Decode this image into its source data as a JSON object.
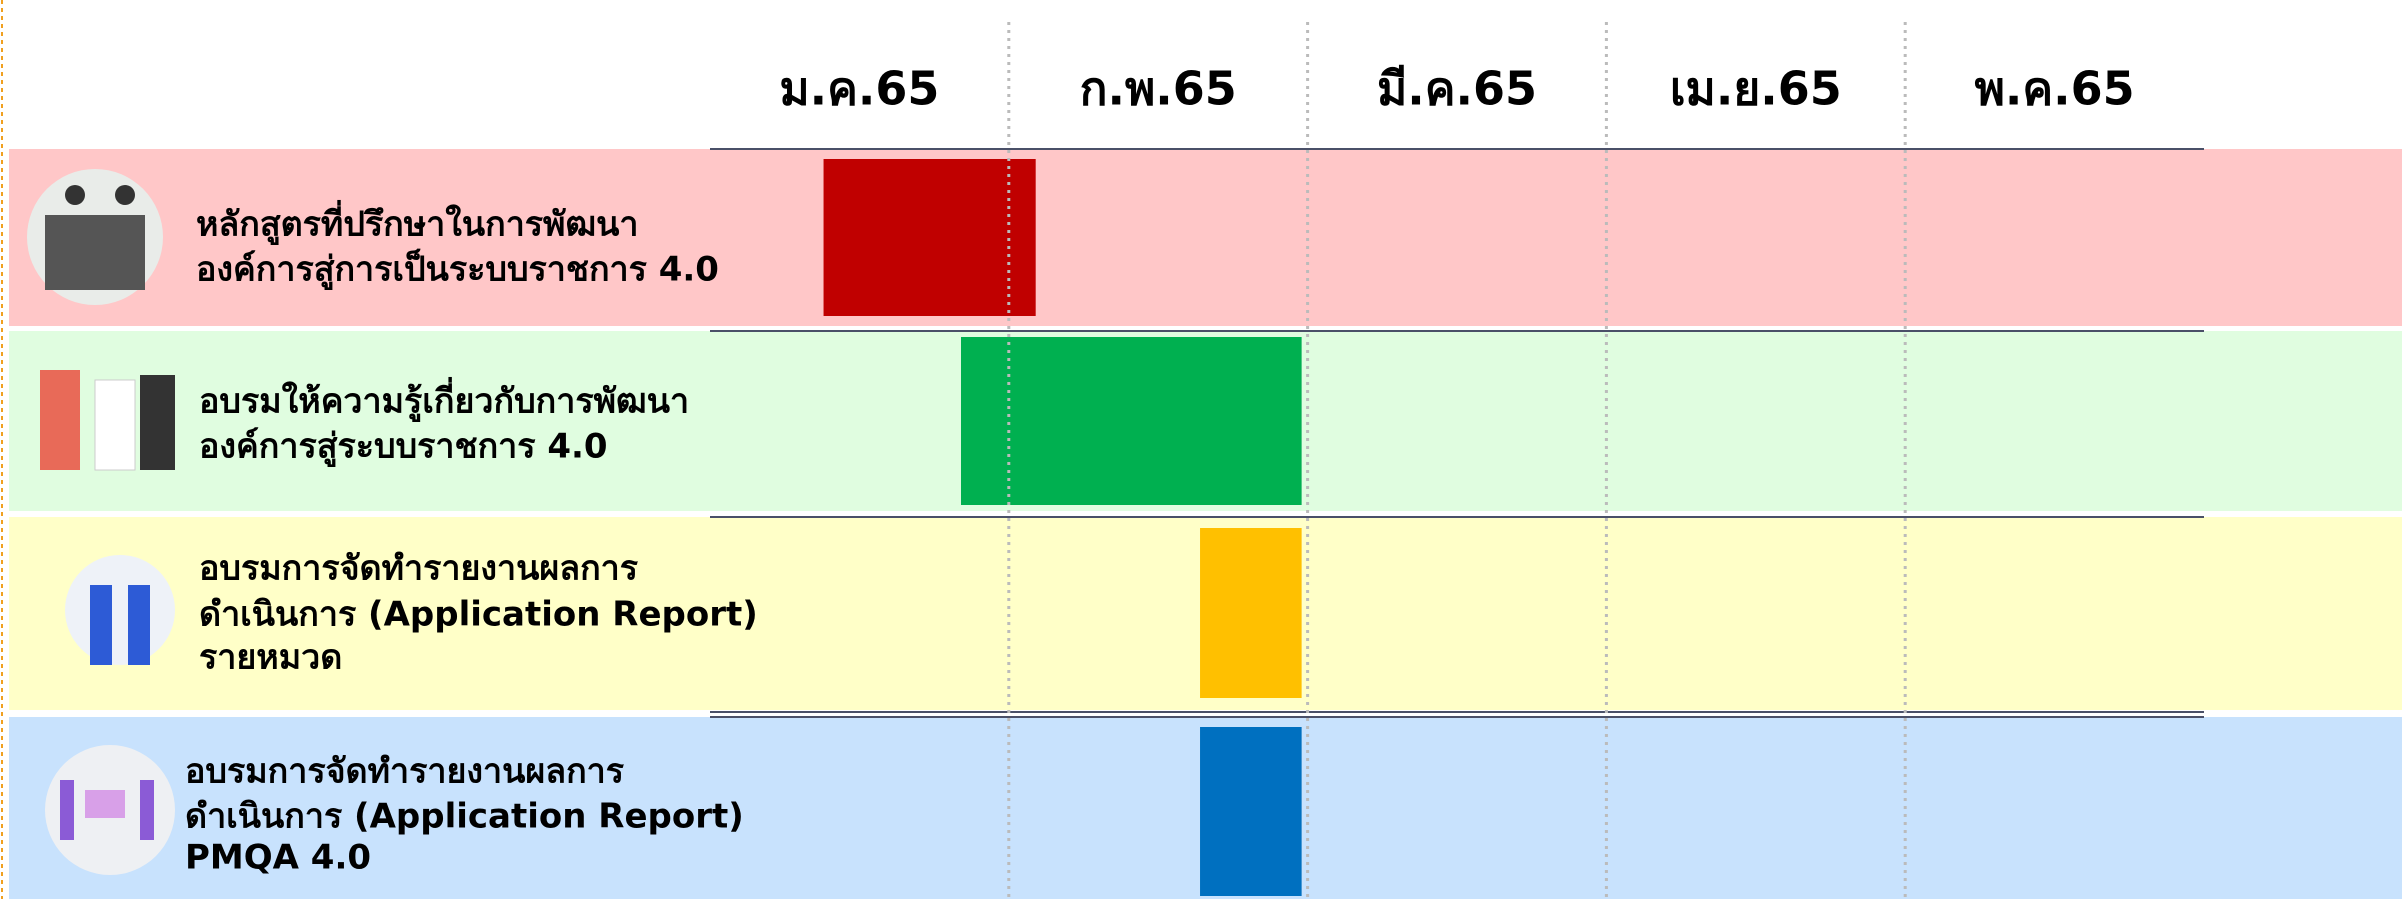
{
  "chart_data": {
    "type": "gantt",
    "categories": [
      "ม.ค.65",
      "ก.พ.65",
      "มี.ค.65",
      "เม.ย.65",
      "พ.ค.65"
    ],
    "xlim": [
      0,
      5
    ],
    "grid": true,
    "tasks": [
      {
        "label_lines": [
          "หลักสูตรที่ปรึกษาในการพัฒนา",
          "องค์การสู่การเป็นระบบราชการ 4.0"
        ],
        "start": 0.38,
        "end": 1.09,
        "color": "#c00000",
        "background": "#ffc7c8"
      },
      {
        "label_lines": [
          "อบรมให้ความรู้เกี่ยวกับการพัฒนา",
          "องค์การสู่ระบบราชการ 4.0"
        ],
        "start": 0.84,
        "end": 1.98,
        "color": "#00b050",
        "background": "#e0fde0"
      },
      {
        "label_lines": [
          "อบรมการจัดทำรายงานผลการ",
          "ดำเนินการ (Application Report)",
          "รายหมวด"
        ],
        "start": 1.64,
        "end": 1.98,
        "color": "#ffc000",
        "background": "#ffffc8"
      },
      {
        "label_lines": [
          "อบรมการจัดทำรายงานผลการ",
          "ดำเนินการ (Application Report)",
          "PMQA 4.0"
        ],
        "start": 1.64,
        "end": 1.98,
        "color": "#0070c0",
        "background": "#c8e2fd"
      }
    ]
  }
}
